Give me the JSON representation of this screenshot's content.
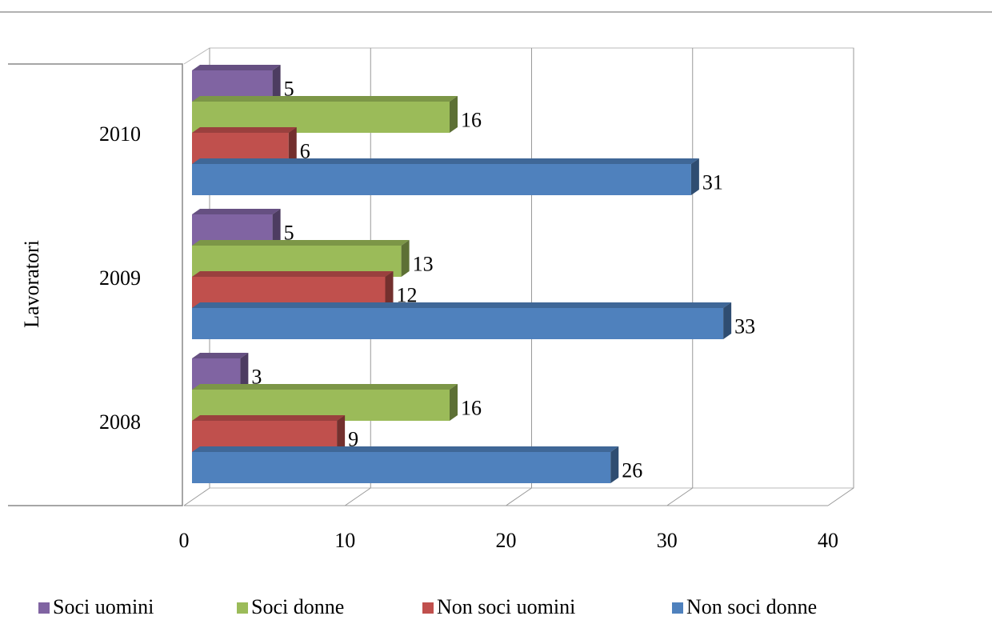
{
  "chart_data": {
    "type": "bar",
    "orientation": "horizontal",
    "three_d": true,
    "y_axis_label": "Lavoratori",
    "categories": [
      "2008",
      "2009",
      "2010"
    ],
    "series": [
      {
        "name": "Soci uomini",
        "color": "#8064a2",
        "values": [
          3,
          5,
          5
        ]
      },
      {
        "name": "Soci donne",
        "color": "#9bbb59",
        "values": [
          16,
          13,
          16
        ]
      },
      {
        "name": "Non soci uomini",
        "color": "#c0504d",
        "values": [
          9,
          12,
          6
        ]
      },
      {
        "name": "Non soci donne",
        "color": "#4f81bd",
        "values": [
          26,
          33,
          31
        ]
      }
    ],
    "xlim": [
      0,
      40
    ],
    "xticks": [
      0,
      10,
      20,
      30,
      40
    ],
    "grid": true,
    "legend": "bottom"
  }
}
